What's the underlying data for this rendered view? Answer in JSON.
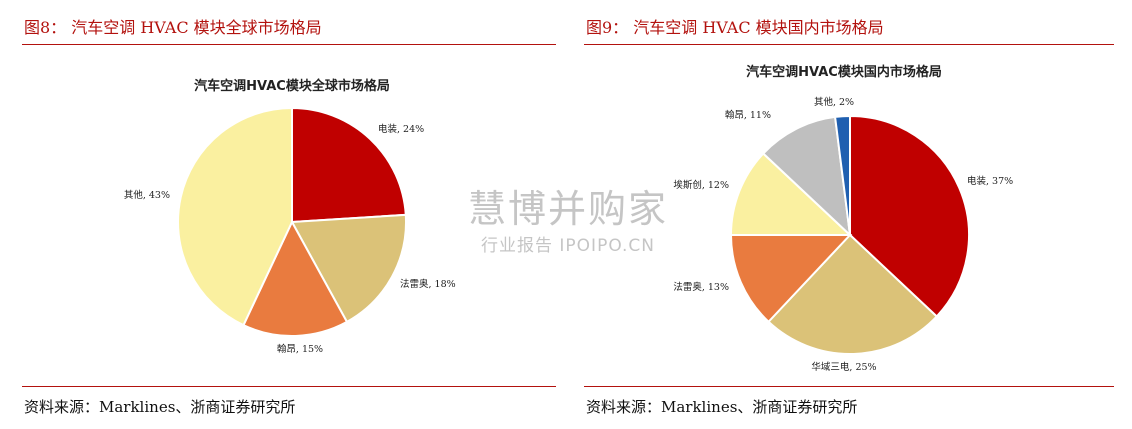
{
  "panels": [
    {
      "fig_title": "图8：  汽车空调 HVAC 模块全球市场格局",
      "source": "资料来源：Marklines、浙商证券研究所",
      "chart_data": {
        "type": "pie",
        "title": "汽车空调HVAC模块全球市场格局",
        "slices": [
          {
            "label": "电装",
            "value": 24,
            "display": "电装, 24%",
            "color": "#c00000"
          },
          {
            "label": "法雷奥",
            "value": 18,
            "display": "法雷奥, 18%",
            "color": "#dbc278"
          },
          {
            "label": "翰昂",
            "value": 15,
            "display": "翰昂, 15%",
            "color": "#e97b3f"
          },
          {
            "label": "其他",
            "value": 43,
            "display": "其他, 43%",
            "color": "#faf0a0"
          }
        ]
      }
    },
    {
      "fig_title": "图9：  汽车空调 HVAC 模块国内市场格局",
      "source": "资料来源：Marklines、浙商证券研究所",
      "chart_data": {
        "type": "pie",
        "title": "汽车空调HVAC模块国内市场格局",
        "slices": [
          {
            "label": "电装",
            "value": 37,
            "display": "电装, 37%",
            "color": "#c00000"
          },
          {
            "label": "华域三电",
            "value": 25,
            "display": "华域三电, 25%",
            "color": "#dbc278"
          },
          {
            "label": "法雷奥",
            "value": 13,
            "display": "法雷奥, 13%",
            "color": "#e97b3f"
          },
          {
            "label": "埃斯创",
            "value": 12,
            "display": "埃斯创, 12%",
            "color": "#faf0a0"
          },
          {
            "label": "翰昂",
            "value": 11,
            "display": "翰昂, 11%",
            "color": "#bfbfbf"
          },
          {
            "label": "其他",
            "value": 2,
            "display": "其他, 2%",
            "color": "#1f5fb0"
          }
        ]
      }
    }
  ],
  "watermark": {
    "main": "慧博并购家",
    "sub": "行业报告 IPOIPO.CN"
  }
}
